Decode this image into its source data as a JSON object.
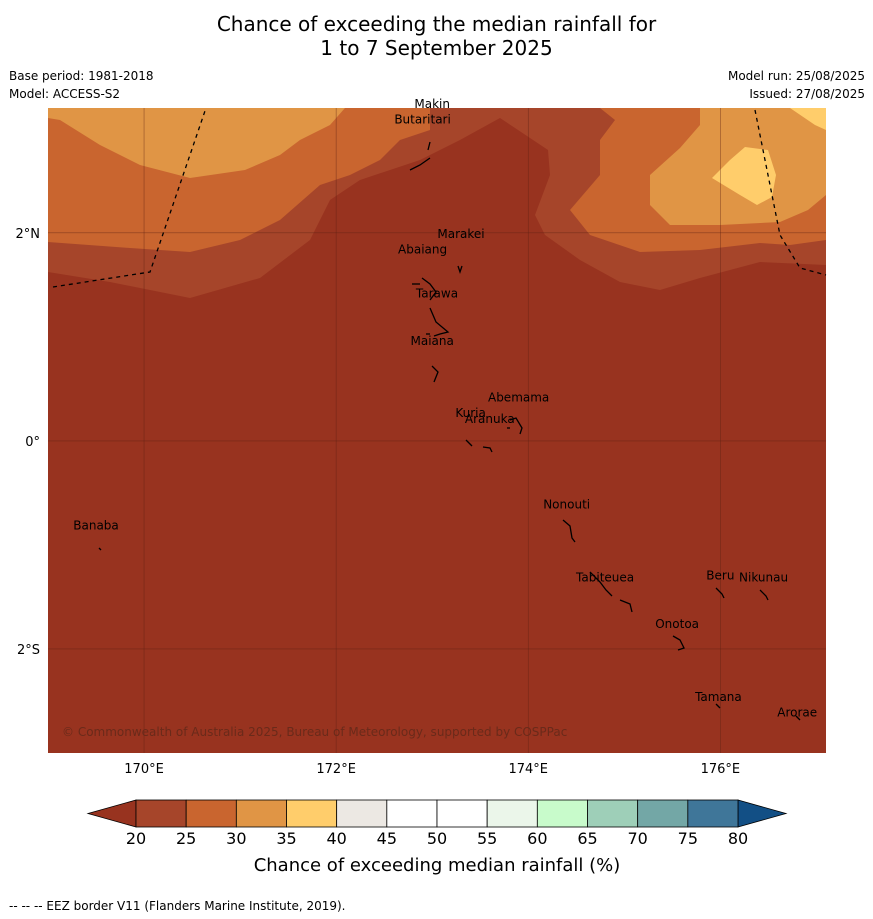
{
  "title": {
    "line1": "Chance of exceeding the median rainfall for",
    "line2": "1 to 7 September 2025"
  },
  "meta": {
    "base_period": "Base period: 1981-2018",
    "model": "Model: ACCESS-S2",
    "model_run": "Model run: 25/08/2025",
    "issued": "Issued: 27/08/2025"
  },
  "map": {
    "lon_range": [
      169.0,
      177.1
    ],
    "lat_range": [
      -3.0,
      3.2
    ],
    "lon_ticks": [
      "170°E",
      "172°E",
      "174°E",
      "176°E"
    ],
    "lat_ticks": [
      "2°N",
      "0°",
      "2°S"
    ],
    "background_class_color": "#98331f",
    "copyright": "© Commonwealth of Australia 2025, Bureau of Meteorology, supported by COSPPac",
    "places": [
      {
        "name": "Makin",
        "lon": 173.0,
        "lat": 3.2
      },
      {
        "name": "Butaritari",
        "lon": 172.9,
        "lat": 3.05
      },
      {
        "name": "Marakei",
        "lon": 173.3,
        "lat": 1.95
      },
      {
        "name": "Abaiang",
        "lon": 172.9,
        "lat": 1.8
      },
      {
        "name": "Tarawa",
        "lon": 173.05,
        "lat": 1.38
      },
      {
        "name": "Maiana",
        "lon": 173.0,
        "lat": 0.92
      },
      {
        "name": "Abemama",
        "lon": 173.9,
        "lat": 0.38
      },
      {
        "name": "Kuria",
        "lon": 173.4,
        "lat": 0.23
      },
      {
        "name": "Aranuka",
        "lon": 173.6,
        "lat": 0.17
      },
      {
        "name": "Nonouti",
        "lon": 174.4,
        "lat": -0.65
      },
      {
        "name": "Banaba",
        "lon": 169.5,
        "lat": -0.85
      },
      {
        "name": "Beru",
        "lon": 176.0,
        "lat": -1.33
      },
      {
        "name": "Tabiteuea",
        "lon": 174.8,
        "lat": -1.35
      },
      {
        "name": "Nikunau",
        "lon": 176.45,
        "lat": -1.35
      },
      {
        "name": "Onotoa",
        "lon": 175.55,
        "lat": -1.8
      },
      {
        "name": "Tamana",
        "lon": 175.98,
        "lat": -2.5
      },
      {
        "name": "Arorae",
        "lon": 176.8,
        "lat": -2.65
      }
    ]
  },
  "colorbar": {
    "ticks": [
      "20",
      "25",
      "30",
      "35",
      "40",
      "45",
      "50",
      "55",
      "60",
      "65",
      "70",
      "75",
      "80"
    ],
    "colors": [
      "#a6452a",
      "#c9652f",
      "#e09545",
      "#ffcd6b",
      "#ece8e3",
      "#ffffff",
      "#ffffff",
      "#ebf6ea",
      "#c8fbcb",
      "#9ecfb8",
      "#73a7a6",
      "#3f7699"
    ],
    "under_color": "#98331f",
    "over_color": "#124f85",
    "label": "Chance of exceeding median rainfall (%)"
  },
  "footer": "--  --  -- EEZ border V11 (Flanders Marine Institute, 2019)."
}
